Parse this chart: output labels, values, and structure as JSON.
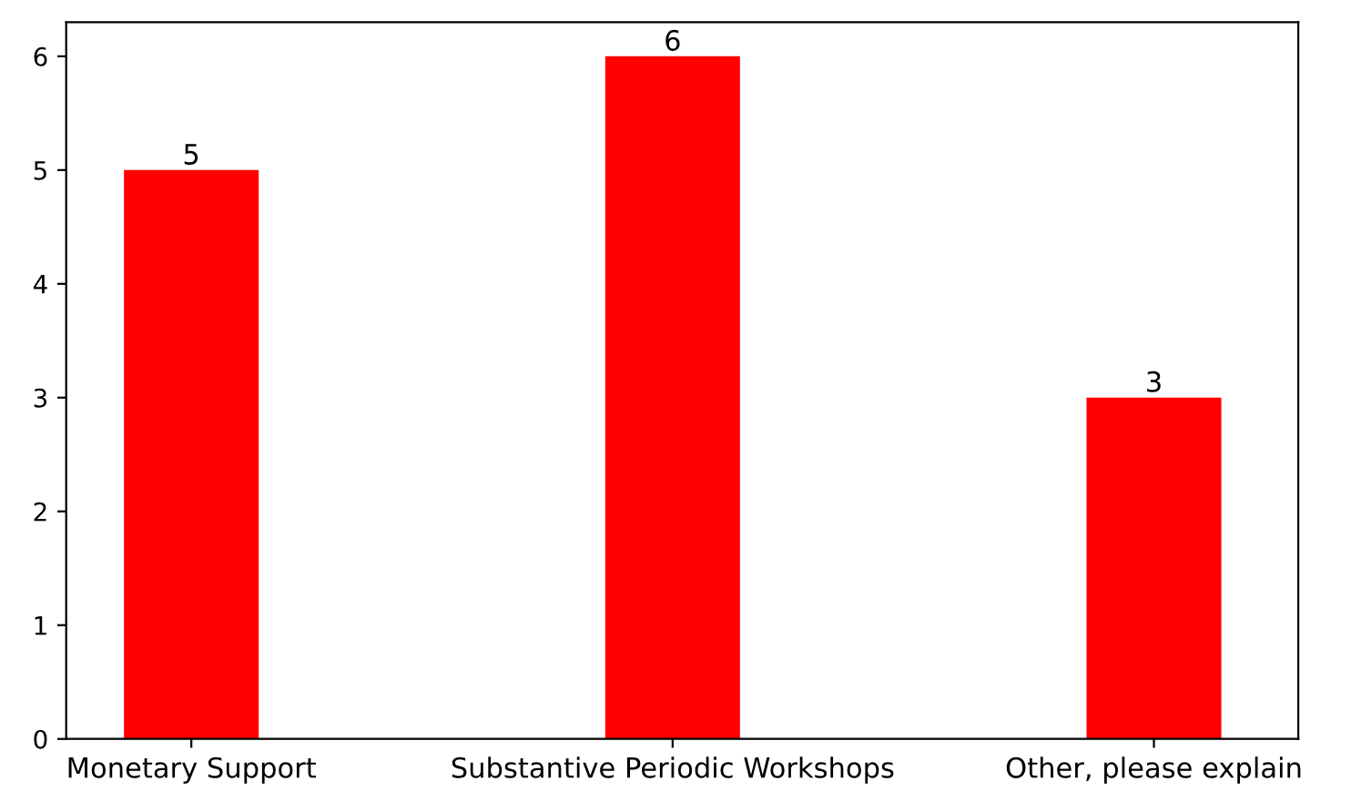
{
  "chart_data": {
    "type": "bar",
    "categories": [
      "Monetary Support",
      "Substantive Periodic Workshops",
      "Other, please explain"
    ],
    "values": [
      5,
      6,
      3
    ],
    "color": "#ff0000",
    "ylim": [
      0,
      6.3
    ],
    "yticks": [
      0,
      1,
      2,
      3,
      4,
      5,
      6
    ],
    "data_labels": true,
    "grid": false,
    "legend": false
  }
}
